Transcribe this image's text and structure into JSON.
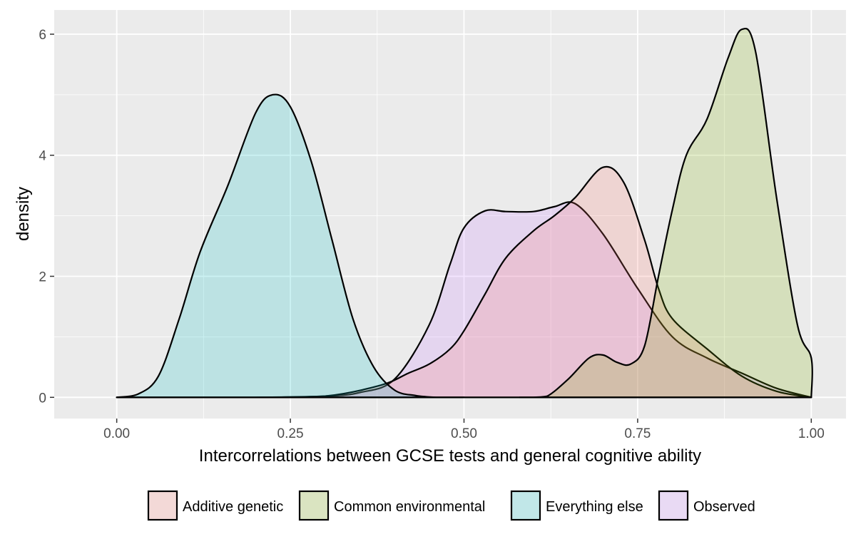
{
  "chart_data": {
    "type": "area",
    "title": "",
    "xlabel": "Intercorrelations between GCSE tests and general cognitive ability",
    "ylabel": "density",
    "xlim": [
      -0.09,
      1.05
    ],
    "ylim": [
      -0.35,
      6.4
    ],
    "x_ticks": [
      0.0,
      0.25,
      0.5,
      0.75,
      1.0
    ],
    "x_tick_labels": [
      "0.00",
      "0.25",
      "0.50",
      "0.75",
      "1.00"
    ],
    "y_ticks": [
      0,
      2,
      4,
      6
    ],
    "y_tick_labels": [
      "0",
      "2",
      "4",
      "6"
    ],
    "grid": true,
    "legend_position": "bottom",
    "series": [
      {
        "name": "Observed",
        "color": "#C77CFF",
        "x": [
          0.0,
          0.1,
          0.2,
          0.3,
          0.35,
          0.4,
          0.45,
          0.48,
          0.5,
          0.53,
          0.56,
          0.6,
          0.63,
          0.66,
          0.7,
          0.75,
          0.8,
          0.85,
          0.9,
          0.95,
          1.0
        ],
        "y": [
          0,
          0,
          0,
          0.02,
          0.08,
          0.3,
          1.2,
          2.2,
          2.8,
          3.08,
          3.07,
          3.07,
          3.15,
          3.2,
          2.7,
          1.8,
          1.0,
          0.65,
          0.4,
          0.15,
          0
        ]
      },
      {
        "name": "Additive genetic",
        "color": "#F8766D",
        "x": [
          0.0,
          0.2,
          0.3,
          0.38,
          0.42,
          0.45,
          0.48,
          0.5,
          0.53,
          0.56,
          0.6,
          0.63,
          0.66,
          0.7,
          0.73,
          0.76,
          0.78,
          0.8,
          0.85,
          0.9,
          0.95,
          1.0
        ],
        "y": [
          0,
          0,
          0.02,
          0.2,
          0.4,
          0.55,
          0.8,
          1.1,
          1.7,
          2.3,
          2.75,
          3.0,
          3.3,
          3.8,
          3.55,
          2.6,
          1.8,
          1.3,
          0.8,
          0.35,
          0.1,
          0
        ]
      },
      {
        "name": "Everything else",
        "color": "#00BFC4",
        "x": [
          0.0,
          0.03,
          0.06,
          0.09,
          0.12,
          0.16,
          0.2,
          0.225,
          0.25,
          0.28,
          0.31,
          0.34,
          0.37,
          0.4,
          0.43,
          0.46,
          0.5
        ],
        "y": [
          0,
          0.05,
          0.35,
          1.3,
          2.4,
          3.5,
          4.7,
          5.0,
          4.8,
          3.9,
          2.6,
          1.3,
          0.5,
          0.12,
          0.03,
          0,
          0
        ]
      },
      {
        "name": "Common environmental",
        "color": "#7CAE00",
        "x": [
          0.58,
          0.6,
          0.62,
          0.65,
          0.68,
          0.7,
          0.72,
          0.74,
          0.76,
          0.78,
          0.8,
          0.82,
          0.85,
          0.88,
          0.9,
          0.92,
          0.95,
          0.98,
          1.0,
          1.0
        ],
        "y": [
          0,
          0,
          0.02,
          0.3,
          0.65,
          0.7,
          0.58,
          0.55,
          0.85,
          2.0,
          3.1,
          4.0,
          4.6,
          5.6,
          6.08,
          5.7,
          3.3,
          1.2,
          0.65,
          0
        ]
      }
    ],
    "legend": [
      {
        "label": "Additive genetic",
        "color": "#F8766D"
      },
      {
        "label": "Common environmental",
        "color": "#7CAE00"
      },
      {
        "label": "Everything else",
        "color": "#00BFC4"
      },
      {
        "label": "Observed",
        "color": "#C77CFF"
      }
    ]
  }
}
